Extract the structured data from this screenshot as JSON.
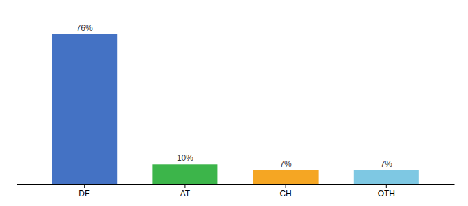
{
  "chart_data": {
    "type": "bar",
    "categories": [
      "DE",
      "AT",
      "CH",
      "OTH"
    ],
    "values": [
      76,
      10,
      7,
      7
    ],
    "value_labels": [
      "76%",
      "10%",
      "7%",
      "7%"
    ],
    "colors": [
      "#4472C4",
      "#3CB54A",
      "#F5A623",
      "#7EC8E3"
    ],
    "ylim": [
      0,
      85
    ],
    "grid": false,
    "data_labels": true,
    "tick_labels": "x"
  }
}
